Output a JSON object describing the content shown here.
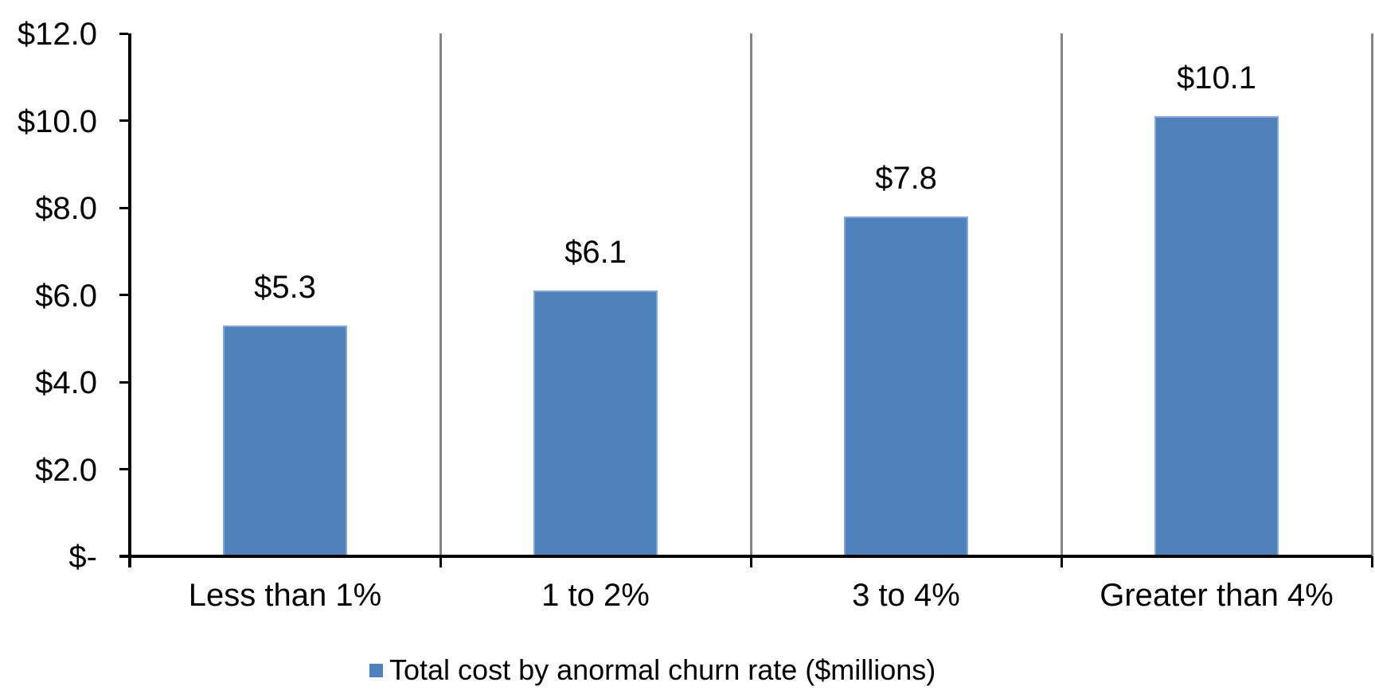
{
  "chart_data": {
    "type": "bar",
    "title": "",
    "xlabel": "",
    "ylabel": "",
    "categories": [
      "Less than 1%",
      "1 to 2%",
      "3 to 4%",
      "Greater than 4%"
    ],
    "values": [
      5.3,
      6.1,
      7.8,
      10.1
    ],
    "data_labels": [
      "$5.3",
      "$6.1",
      "$7.8",
      "$10.1"
    ],
    "series_name": "Total cost by anormal churn rate ($millions)",
    "ylim": [
      0,
      12
    ],
    "y_ticks": [
      0,
      2,
      4,
      6,
      8,
      10,
      12
    ],
    "y_tick_labels": [
      "$-",
      "$2.0",
      "$4.0",
      "$6.0",
      "$8.0",
      "$10.0",
      "$12.0"
    ],
    "grid": "vertical category separators only, no horizontal gridlines",
    "legend_position": "bottom-center",
    "colors": {
      "bar_fill": "#4F81BD",
      "bar_border": "#84A7D4",
      "axis_line": "#000000",
      "separator_line": "#848484",
      "text": "#000000",
      "background": "#FFFFFF"
    }
  }
}
